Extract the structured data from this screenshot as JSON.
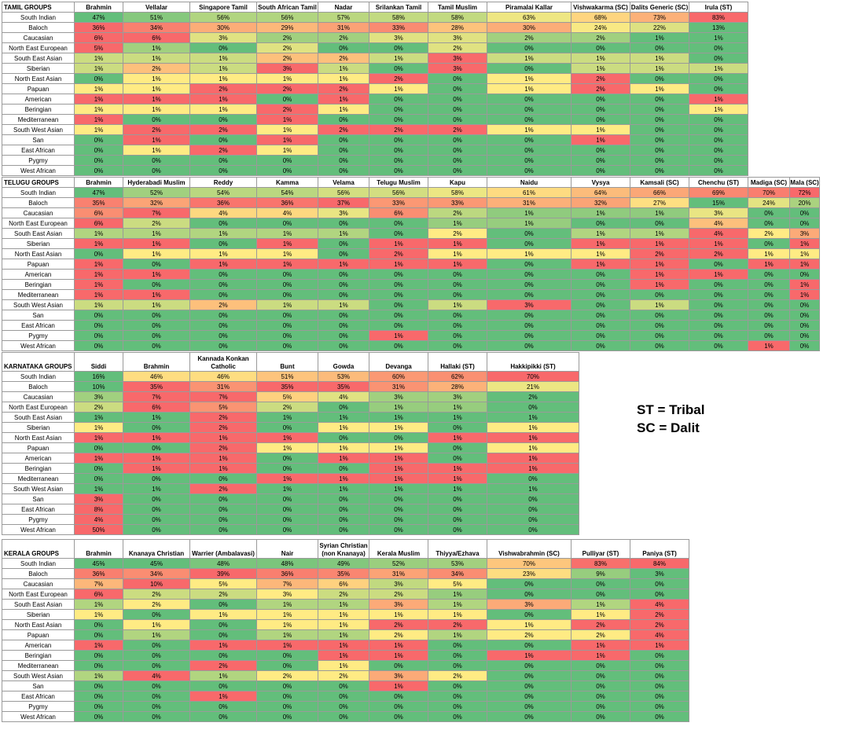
{
  "legend": [
    "ST = Tribal",
    "SC = Dalit"
  ],
  "colors": {
    "scale_low": "#63be7b",
    "scale_mid": "#ffeb84",
    "scale_high": "#f8696b"
  },
  "tables": [
    {
      "title": "TAMIL GROUPS",
      "columns": [
        "Brahmin",
        "Vellalar",
        "Singapore Tamil",
        "South African Tamil",
        "Nadar",
        "Srilankan Tamil",
        "Tamil Muslim",
        "Piramalai Kallar",
        "Vishwakarma (SC)",
        "Dalits Generic (SC)",
        "Irula (ST)"
      ],
      "rows": [
        {
          "label": "South Indian",
          "values": [
            "47%",
            "51%",
            "56%",
            "56%",
            "57%",
            "58%",
            "58%",
            "63%",
            "68%",
            "73%",
            "83%"
          ]
        },
        {
          "label": "Baloch",
          "values": [
            "36%",
            "34%",
            "30%",
            "29%",
            "31%",
            "33%",
            "28%",
            "30%",
            "24%",
            "22%",
            "13%"
          ]
        },
        {
          "label": "Caucasian",
          "values": [
            "6%",
            "6%",
            "3%",
            "2%",
            "2%",
            "3%",
            "3%",
            "2%",
            "2%",
            "1%",
            "1%"
          ]
        },
        {
          "label": "North East European",
          "values": [
            "5%",
            "1%",
            "0%",
            "2%",
            "0%",
            "0%",
            "2%",
            "0%",
            "0%",
            "0%",
            "0%"
          ]
        },
        {
          "label": "South East Asian",
          "values": [
            "1%",
            "1%",
            "1%",
            "2%",
            "2%",
            "1%",
            "3%",
            "1%",
            "1%",
            "1%",
            "0%"
          ]
        },
        {
          "label": "Siberian",
          "values": [
            "1%",
            "2%",
            "1%",
            "3%",
            "1%",
            "0%",
            "3%",
            "0%",
            "1%",
            "1%",
            "1%"
          ]
        },
        {
          "label": "North East Asian",
          "values": [
            "0%",
            "1%",
            "1%",
            "1%",
            "1%",
            "2%",
            "0%",
            "1%",
            "2%",
            "0%",
            "0%"
          ]
        },
        {
          "label": "Papuan",
          "values": [
            "1%",
            "1%",
            "2%",
            "2%",
            "2%",
            "1%",
            "0%",
            "1%",
            "2%",
            "1%",
            "0%"
          ]
        },
        {
          "label": "American",
          "values": [
            "1%",
            "1%",
            "1%",
            "0%",
            "1%",
            "0%",
            "0%",
            "0%",
            "0%",
            "0%",
            "1%"
          ]
        },
        {
          "label": "Beringian",
          "values": [
            "1%",
            "1%",
            "1%",
            "2%",
            "1%",
            "0%",
            "0%",
            "0%",
            "0%",
            "0%",
            "1%"
          ]
        },
        {
          "label": "Mediterranean",
          "values": [
            "1%",
            "0%",
            "0%",
            "1%",
            "0%",
            "0%",
            "0%",
            "0%",
            "0%",
            "0%",
            "0%"
          ]
        },
        {
          "label": "South West Asian",
          "values": [
            "1%",
            "2%",
            "2%",
            "1%",
            "2%",
            "2%",
            "2%",
            "1%",
            "1%",
            "0%",
            "0%"
          ]
        },
        {
          "label": "San",
          "values": [
            "0%",
            "1%",
            "0%",
            "1%",
            "0%",
            "0%",
            "0%",
            "0%",
            "1%",
            "0%",
            "0%"
          ]
        },
        {
          "label": "East African",
          "values": [
            "0%",
            "1%",
            "2%",
            "1%",
            "0%",
            "0%",
            "0%",
            "0%",
            "0%",
            "0%",
            "0%"
          ]
        },
        {
          "label": "Pygmy",
          "values": [
            "0%",
            "0%",
            "0%",
            "0%",
            "0%",
            "0%",
            "0%",
            "0%",
            "0%",
            "0%",
            "0%"
          ]
        },
        {
          "label": "West African",
          "values": [
            "0%",
            "0%",
            "0%",
            "0%",
            "0%",
            "0%",
            "0%",
            "0%",
            "0%",
            "0%",
            "0%"
          ]
        }
      ]
    },
    {
      "title": "TELUGU GROUPS",
      "columns": [
        "Brahmin",
        "Hyderabadi Muslim",
        "Reddy",
        "Kamma",
        "Velama",
        "Telugu Muslim",
        "Kapu",
        "Naidu",
        "Vysya",
        "Kamsali (SC)",
        "Chenchu (ST)",
        "Madiga (SC)",
        "Mala (SC)"
      ],
      "rows": [
        {
          "label": "South Indian",
          "values": [
            "47%",
            "52%",
            "54%",
            "54%",
            "56%",
            "56%",
            "58%",
            "61%",
            "64%",
            "66%",
            "69%",
            "70%",
            "72%"
          ]
        },
        {
          "label": "Baloch",
          "values": [
            "35%",
            "32%",
            "36%",
            "36%",
            "37%",
            "33%",
            "33%",
            "31%",
            "32%",
            "27%",
            "15%",
            "24%",
            "20%"
          ]
        },
        {
          "label": "Caucasian",
          "values": [
            "6%",
            "7%",
            "4%",
            "4%",
            "3%",
            "6%",
            "2%",
            "1%",
            "1%",
            "1%",
            "3%",
            "0%",
            "0%"
          ]
        },
        {
          "label": "North East European",
          "values": [
            "6%",
            "2%",
            "0%",
            "0%",
            "0%",
            "0%",
            "1%",
            "1%",
            "0%",
            "0%",
            "4%",
            "0%",
            "0%"
          ]
        },
        {
          "label": "South East Asian",
          "values": [
            "1%",
            "1%",
            "1%",
            "1%",
            "1%",
            "0%",
            "2%",
            "0%",
            "1%",
            "1%",
            "4%",
            "2%",
            "3%"
          ]
        },
        {
          "label": "Siberian",
          "values": [
            "1%",
            "1%",
            "0%",
            "1%",
            "0%",
            "1%",
            "1%",
            "0%",
            "1%",
            "1%",
            "1%",
            "0%",
            "1%"
          ]
        },
        {
          "label": "North East Asian",
          "values": [
            "0%",
            "1%",
            "1%",
            "1%",
            "0%",
            "2%",
            "1%",
            "1%",
            "1%",
            "2%",
            "2%",
            "1%",
            "1%"
          ]
        },
        {
          "label": "Papuan",
          "values": [
            "1%",
            "0%",
            "1%",
            "1%",
            "1%",
            "1%",
            "1%",
            "0%",
            "1%",
            "1%",
            "0%",
            "1%",
            "1%"
          ]
        },
        {
          "label": "American",
          "values": [
            "1%",
            "1%",
            "0%",
            "0%",
            "0%",
            "0%",
            "0%",
            "0%",
            "0%",
            "1%",
            "1%",
            "0%",
            "0%"
          ]
        },
        {
          "label": "Beringian",
          "values": [
            "1%",
            "0%",
            "0%",
            "0%",
            "0%",
            "0%",
            "0%",
            "0%",
            "0%",
            "1%",
            "0%",
            "0%",
            "1%"
          ]
        },
        {
          "label": "Mediterranean",
          "values": [
            "1%",
            "1%",
            "0%",
            "0%",
            "0%",
            "0%",
            "0%",
            "0%",
            "0%",
            "0%",
            "0%",
            "0%",
            "1%"
          ]
        },
        {
          "label": "South West Asian",
          "values": [
            "1%",
            "1%",
            "2%",
            "1%",
            "1%",
            "0%",
            "1%",
            "3%",
            "0%",
            "1%",
            "0%",
            "0%",
            "0%"
          ]
        },
        {
          "label": "San",
          "values": [
            "0%",
            "0%",
            "0%",
            "0%",
            "0%",
            "0%",
            "0%",
            "0%",
            "0%",
            "0%",
            "0%",
            "0%",
            "0%"
          ]
        },
        {
          "label": "East African",
          "values": [
            "0%",
            "0%",
            "0%",
            "0%",
            "0%",
            "0%",
            "0%",
            "0%",
            "0%",
            "0%",
            "0%",
            "0%",
            "0%"
          ]
        },
        {
          "label": "Pygmy",
          "values": [
            "0%",
            "0%",
            "0%",
            "0%",
            "0%",
            "1%",
            "0%",
            "0%",
            "0%",
            "0%",
            "0%",
            "0%",
            "0%"
          ]
        },
        {
          "label": "West African",
          "values": [
            "0%",
            "0%",
            "0%",
            "0%",
            "0%",
            "0%",
            "0%",
            "0%",
            "0%",
            "0%",
            "0%",
            "1%",
            "0%"
          ]
        }
      ]
    },
    {
      "title": "KARNATAKA GROUPS",
      "columns": [
        "Siddi",
        "Brahmin",
        "Kannada Konkan Catholic",
        "Bunt",
        "Gowda",
        "Devanga",
        "Hallaki (ST)",
        "Hakkipikki (ST)"
      ],
      "rows": [
        {
          "label": "South Indian",
          "values": [
            "16%",
            "46%",
            "46%",
            "51%",
            "53%",
            "60%",
            "62%",
            "70%"
          ]
        },
        {
          "label": "Baloch",
          "values": [
            "10%",
            "35%",
            "31%",
            "35%",
            "35%",
            "31%",
            "28%",
            "21%"
          ]
        },
        {
          "label": "Caucasian",
          "values": [
            "3%",
            "7%",
            "7%",
            "5%",
            "4%",
            "3%",
            "3%",
            "2%"
          ]
        },
        {
          "label": "North East European",
          "values": [
            "2%",
            "6%",
            "5%",
            "2%",
            "0%",
            "1%",
            "1%",
            "0%"
          ]
        },
        {
          "label": "South East Asian",
          "values": [
            "1%",
            "1%",
            "2%",
            "1%",
            "1%",
            "1%",
            "1%",
            "1%"
          ]
        },
        {
          "label": "Siberian",
          "values": [
            "1%",
            "0%",
            "2%",
            "0%",
            "1%",
            "1%",
            "0%",
            "1%"
          ]
        },
        {
          "label": "North East Asian",
          "values": [
            "1%",
            "1%",
            "1%",
            "1%",
            "0%",
            "0%",
            "1%",
            "1%"
          ]
        },
        {
          "label": "Papuan",
          "values": [
            "0%",
            "0%",
            "2%",
            "1%",
            "1%",
            "1%",
            "0%",
            "1%"
          ]
        },
        {
          "label": "American",
          "values": [
            "1%",
            "1%",
            "1%",
            "0%",
            "1%",
            "1%",
            "0%",
            "1%"
          ]
        },
        {
          "label": "Beringian",
          "values": [
            "0%",
            "1%",
            "1%",
            "0%",
            "0%",
            "1%",
            "1%",
            "1%"
          ]
        },
        {
          "label": "Mediterranean",
          "values": [
            "0%",
            "0%",
            "0%",
            "1%",
            "1%",
            "1%",
            "1%",
            "0%"
          ]
        },
        {
          "label": "South West Asian",
          "values": [
            "1%",
            "1%",
            "2%",
            "1%",
            "1%",
            "1%",
            "1%",
            "1%"
          ]
        },
        {
          "label": "San",
          "values": [
            "3%",
            "0%",
            "0%",
            "0%",
            "0%",
            "0%",
            "0%",
            "0%"
          ]
        },
        {
          "label": "East African",
          "values": [
            "8%",
            "0%",
            "0%",
            "0%",
            "0%",
            "0%",
            "0%",
            "0%"
          ]
        },
        {
          "label": "Pygmy",
          "values": [
            "4%",
            "0%",
            "0%",
            "0%",
            "0%",
            "0%",
            "0%",
            "0%"
          ]
        },
        {
          "label": "West African",
          "values": [
            "50%",
            "0%",
            "0%",
            "0%",
            "0%",
            "0%",
            "0%",
            "0%"
          ]
        }
      ]
    },
    {
      "title": "KERALA GROUPS",
      "columns": [
        "Brahmin",
        "Knanaya Christian",
        "Warrier (Ambalavasi)",
        "Nair",
        "Syrian Christian (non Knanaya)",
        "Kerala Muslim",
        "Thiyya/Ezhava",
        "Vishwabrahmin (SC)",
        "Pulliyar (ST)",
        "Paniya (ST)"
      ],
      "rows": [
        {
          "label": "South Indian",
          "values": [
            "45%",
            "45%",
            "48%",
            "48%",
            "49%",
            "52%",
            "53%",
            "70%",
            "83%",
            "84%"
          ]
        },
        {
          "label": "Baloch",
          "values": [
            "36%",
            "34%",
            "39%",
            "36%",
            "35%",
            "31%",
            "34%",
            "23%",
            "9%",
            "3%"
          ]
        },
        {
          "label": "Caucasian",
          "values": [
            "7%",
            "10%",
            "5%",
            "7%",
            "6%",
            "3%",
            "5%",
            "0%",
            "0%",
            "0%"
          ]
        },
        {
          "label": "North East European",
          "values": [
            "6%",
            "2%",
            "2%",
            "3%",
            "2%",
            "2%",
            "1%",
            "0%",
            "0%",
            "0%"
          ]
        },
        {
          "label": "South East Asian",
          "values": [
            "1%",
            "2%",
            "0%",
            "1%",
            "1%",
            "3%",
            "1%",
            "3%",
            "1%",
            "4%"
          ]
        },
        {
          "label": "Siberian",
          "values": [
            "1%",
            "0%",
            "1%",
            "1%",
            "1%",
            "1%",
            "1%",
            "0%",
            "1%",
            "2%"
          ]
        },
        {
          "label": "North East Asian",
          "values": [
            "0%",
            "1%",
            "0%",
            "1%",
            "1%",
            "2%",
            "2%",
            "1%",
            "2%",
            "2%"
          ]
        },
        {
          "label": "Papuan",
          "values": [
            "0%",
            "1%",
            "0%",
            "1%",
            "1%",
            "2%",
            "1%",
            "2%",
            "2%",
            "4%"
          ]
        },
        {
          "label": "American",
          "values": [
            "1%",
            "0%",
            "1%",
            "1%",
            "1%",
            "1%",
            "0%",
            "0%",
            "1%",
            "1%"
          ]
        },
        {
          "label": "Beringian",
          "values": [
            "0%",
            "0%",
            "0%",
            "0%",
            "1%",
            "1%",
            "0%",
            "1%",
            "1%",
            "0%"
          ]
        },
        {
          "label": "Mediterranean",
          "values": [
            "0%",
            "0%",
            "2%",
            "0%",
            "1%",
            "0%",
            "0%",
            "0%",
            "0%",
            "0%"
          ]
        },
        {
          "label": "South West Asian",
          "values": [
            "1%",
            "4%",
            "1%",
            "2%",
            "2%",
            "3%",
            "2%",
            "0%",
            "0%",
            "0%"
          ]
        },
        {
          "label": "San",
          "values": [
            "0%",
            "0%",
            "0%",
            "0%",
            "0%",
            "1%",
            "0%",
            "0%",
            "0%",
            "0%"
          ]
        },
        {
          "label": "East African",
          "values": [
            "0%",
            "0%",
            "1%",
            "0%",
            "0%",
            "0%",
            "0%",
            "0%",
            "0%",
            "0%"
          ]
        },
        {
          "label": "Pygmy",
          "values": [
            "0%",
            "0%",
            "0%",
            "0%",
            "0%",
            "0%",
            "0%",
            "0%",
            "0%",
            "0%"
          ]
        },
        {
          "label": "West African",
          "values": [
            "0%",
            "0%",
            "0%",
            "0%",
            "0%",
            "0%",
            "0%",
            "0%",
            "0%",
            "0%"
          ]
        }
      ]
    }
  ]
}
